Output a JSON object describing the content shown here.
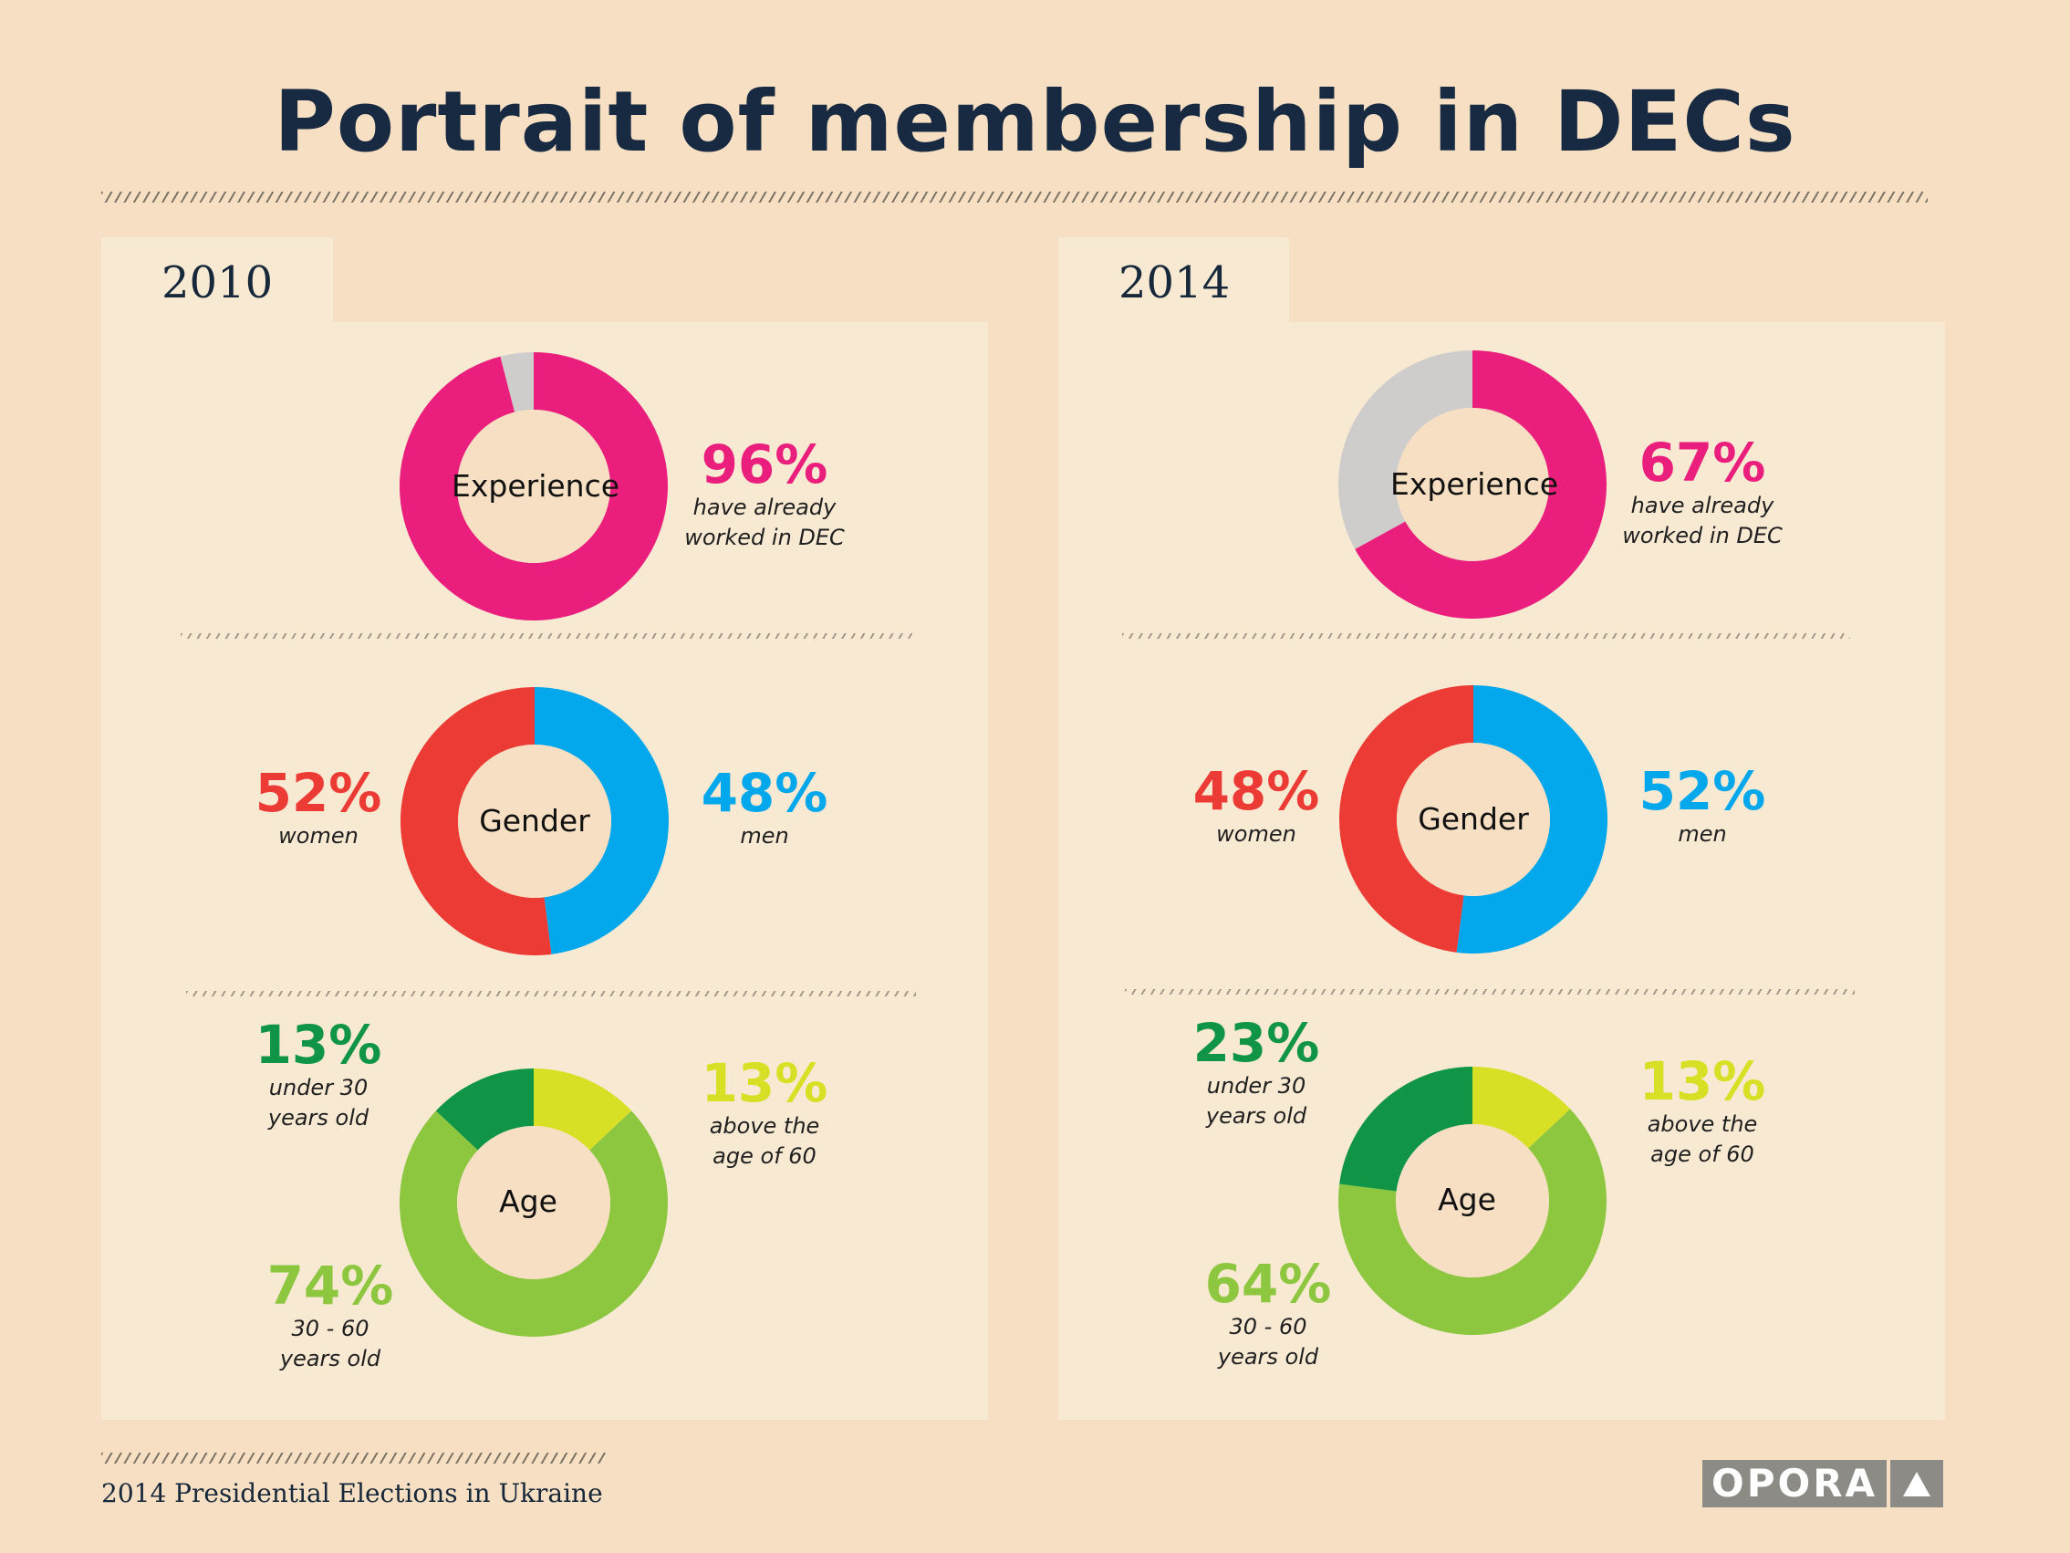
{
  "title": "Portrait of membership in DECs",
  "footer": "2014 Presidential Elections in Ukraine",
  "logo": "OPORA",
  "colors": {
    "experience": "#ea1e7d",
    "other": "#cfcdcc",
    "women": "#ec3b35",
    "men": "#02a8eb",
    "under30": "#0f9545",
    "age30to60": "#8dc63f",
    "over60": "#d7e024",
    "donut_center": "#f6dfc2"
  },
  "panels": [
    {
      "year": "2010",
      "experience": {
        "center_label": "Experience",
        "value_label": "96%",
        "desc": [
          "have already",
          "worked in DEC"
        ]
      },
      "gender": {
        "center_label": "Gender",
        "women_value": "52%",
        "women_label": "women",
        "men_value": "48%",
        "men_label": "men"
      },
      "age": {
        "center_label": "Age",
        "under30_value": "13%",
        "under30_desc": [
          "under 30",
          "years old"
        ],
        "mid_value": "74%",
        "mid_desc": [
          "30 - 60",
          "years old"
        ],
        "over60_value": "13%",
        "over60_desc": [
          "above the",
          "age of 60"
        ]
      }
    },
    {
      "year": "2014",
      "experience": {
        "center_label": "Experience",
        "value_label": "67%",
        "desc": [
          "have already",
          "worked in DEC"
        ]
      },
      "gender": {
        "center_label": "Gender",
        "women_value": "48%",
        "women_label": "women",
        "men_value": "52%",
        "men_label": "men"
      },
      "age": {
        "center_label": "Age",
        "under30_value": "23%",
        "under30_desc": [
          "under 30",
          "years old"
        ],
        "mid_value": "64%",
        "mid_desc": [
          "30 - 60",
          "years old"
        ],
        "over60_value": "13%",
        "over60_desc": [
          "above the",
          "age of 60"
        ]
      }
    }
  ],
  "chart_data": [
    {
      "type": "pie",
      "year": "2010",
      "center_label": "Experience",
      "categories": [
        "have already worked in DEC",
        "other"
      ],
      "values": [
        96,
        4
      ]
    },
    {
      "type": "pie",
      "year": "2010",
      "center_label": "Gender",
      "categories": [
        "men",
        "women"
      ],
      "values": [
        48,
        52
      ]
    },
    {
      "type": "pie",
      "year": "2010",
      "center_label": "Age",
      "categories": [
        "above the age of 60",
        "30 - 60 years old",
        "under 30 years old"
      ],
      "values": [
        13,
        74,
        13
      ]
    },
    {
      "type": "pie",
      "year": "2014",
      "center_label": "Experience",
      "categories": [
        "have already worked in DEC",
        "other"
      ],
      "values": [
        67,
        33
      ]
    },
    {
      "type": "pie",
      "year": "2014",
      "center_label": "Gender",
      "categories": [
        "men",
        "women"
      ],
      "values": [
        52,
        48
      ]
    },
    {
      "type": "pie",
      "year": "2014",
      "center_label": "Age",
      "categories": [
        "above the age of 60",
        "30 - 60 years old",
        "under 30 years old"
      ],
      "values": [
        13,
        64,
        23
      ]
    }
  ]
}
